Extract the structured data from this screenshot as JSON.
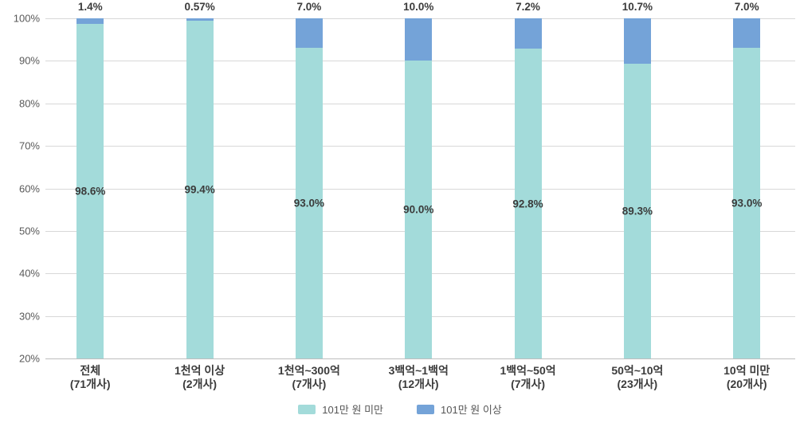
{
  "chart_data": {
    "type": "bar",
    "stacked": true,
    "orientation": "vertical",
    "grid": true,
    "legend_position": "bottom",
    "categories": [
      {
        "label": "전체",
        "sub": "(71개사)"
      },
      {
        "label": "1천억 이상",
        "sub": "(2개사)"
      },
      {
        "label": "1천억~300억",
        "sub": "(7개사)"
      },
      {
        "label": "3백억~1백억",
        "sub": "(12개사)"
      },
      {
        "label": "1백억~50억",
        "sub": "(7개사)"
      },
      {
        "label": "50억~10억",
        "sub": "(23개사)"
      },
      {
        "label": "10억 미만",
        "sub": "(20개사)"
      }
    ],
    "series": [
      {
        "name": "101만 원 미만",
        "color": "#a3dbda",
        "values": [
          98.6,
          99.4,
          93.0,
          90.0,
          92.8,
          89.3,
          93.0
        ],
        "labels": [
          "98.6%",
          "99.4%",
          "93.0%",
          "90.0%",
          "92.8%",
          "89.3%",
          "93.0%"
        ]
      },
      {
        "name": "101만 원 이상",
        "color": "#74a3d8",
        "values": [
          1.4,
          0.57,
          7.0,
          10.0,
          7.2,
          10.7,
          7.0
        ],
        "labels": [
          "1.4%",
          "0.57%",
          "7.0%",
          "10.0%",
          "7.2%",
          "10.7%",
          "7.0%"
        ]
      }
    ],
    "y_axis": {
      "min": 20,
      "max": 100,
      "step": 10,
      "tick_labels": [
        "100%",
        "90%",
        "80%",
        "70%",
        "60%",
        "50%",
        "40%",
        "30%",
        "20%"
      ]
    }
  },
  "colors": {
    "under_series": "#a3dbda",
    "over_series": "#74a3d8",
    "gridline": "#d8d8d8",
    "axis_text": "#595959",
    "label_text": "#3b3b3b"
  }
}
